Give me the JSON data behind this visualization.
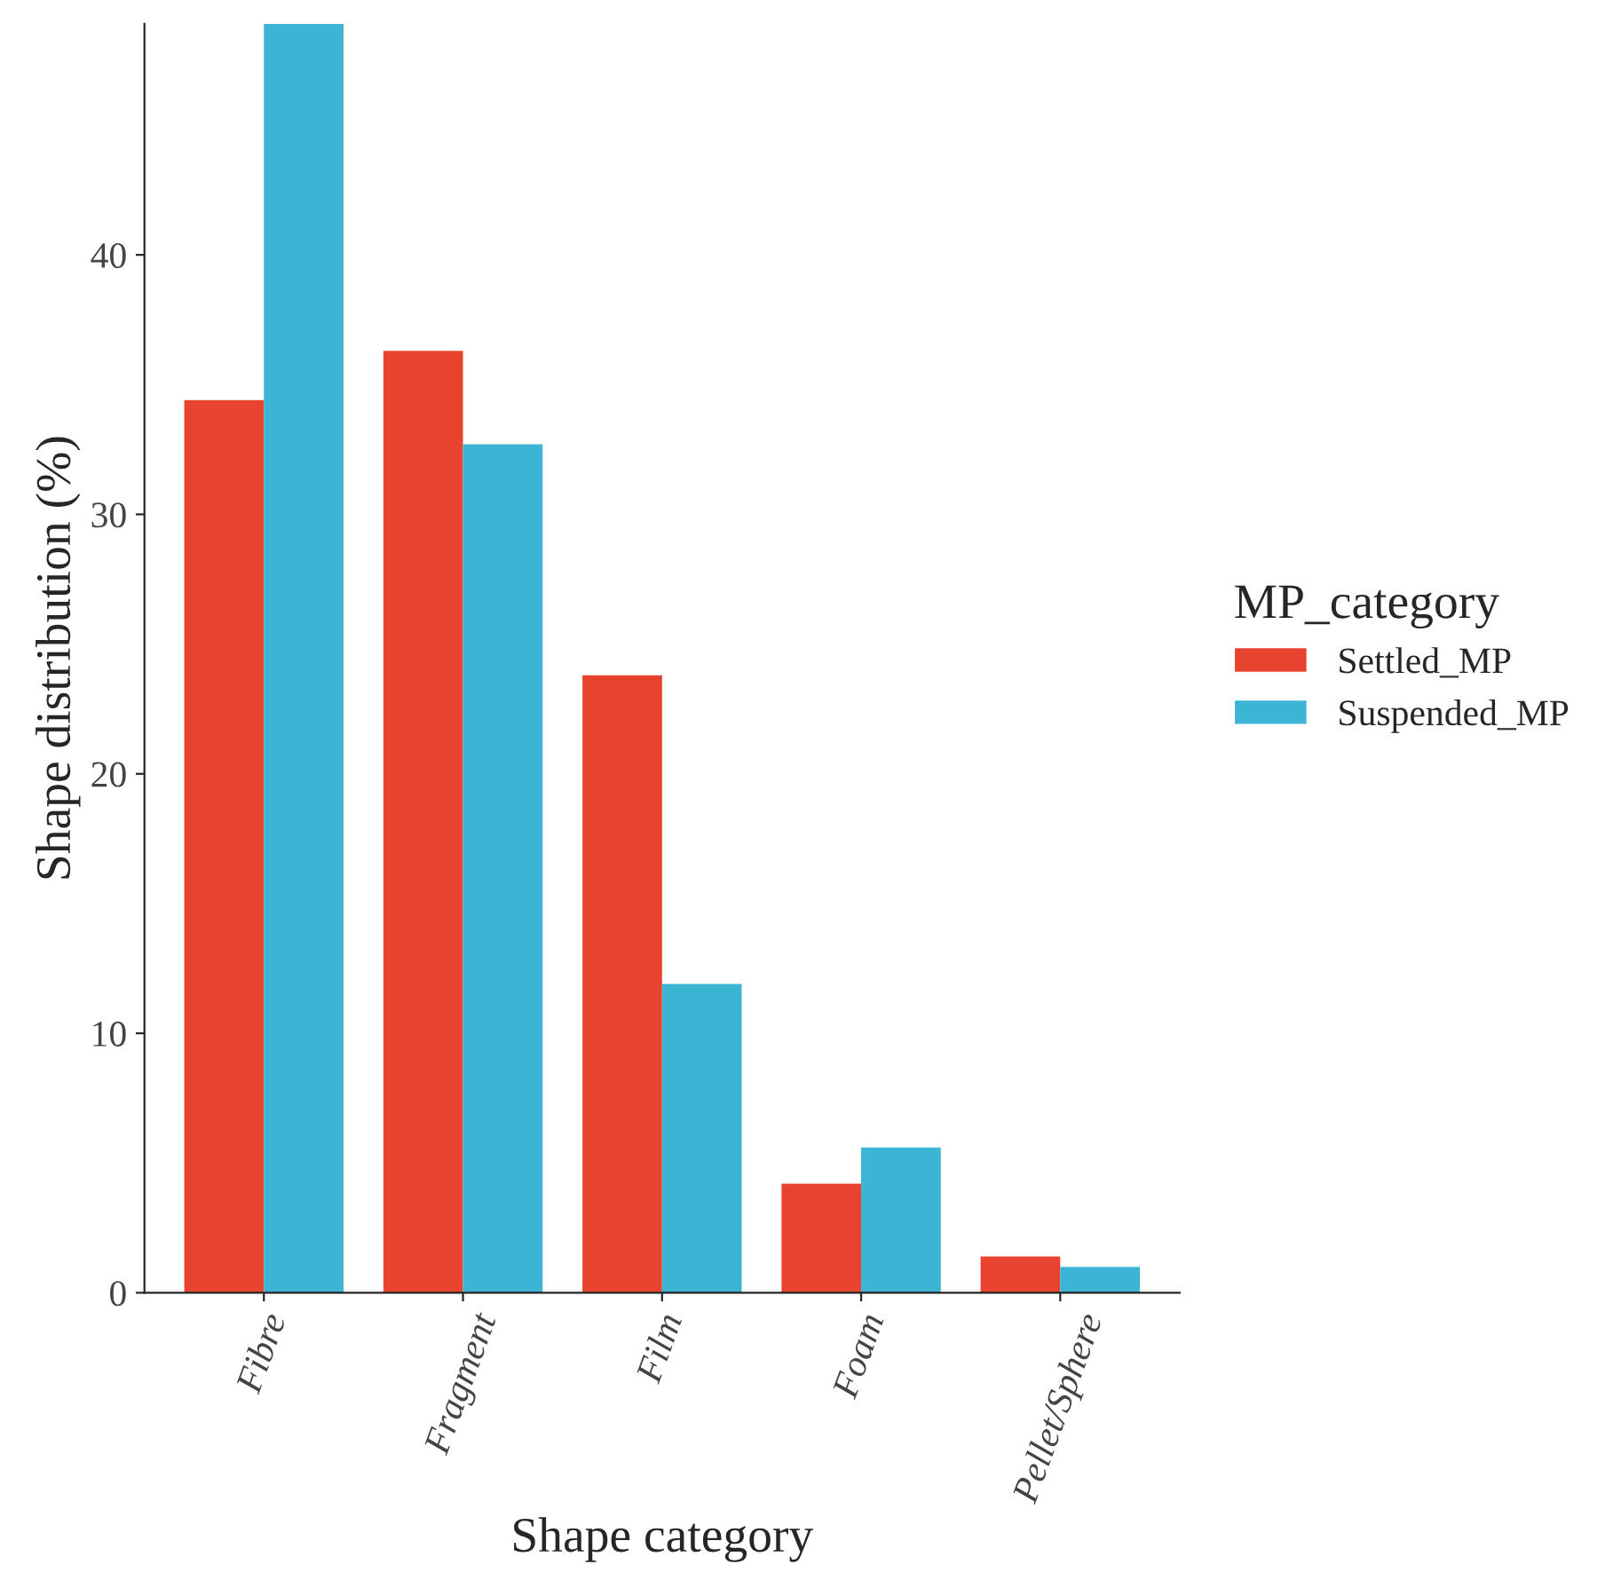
{
  "chart_data": {
    "type": "bar",
    "xlabel": "Shape category",
    "ylabel": "Shape distribution (%)",
    "legend_title": "MP_category",
    "categories": [
      "Fibre",
      "Fragment",
      "Film",
      "Foam",
      "Pellet/Sphere"
    ],
    "series": [
      {
        "name": "Settled_MP",
        "color": "#e8432f",
        "values": [
          34.4,
          36.3,
          23.8,
          4.2,
          1.4
        ]
      },
      {
        "name": "Suspended_MP",
        "color": "#3cb4d4",
        "values": [
          48.9,
          32.7,
          11.9,
          5.6,
          1.0
        ]
      }
    ],
    "ylim": [
      0,
      48.9
    ],
    "yticks": [
      0,
      10,
      20,
      30,
      40
    ],
    "grid": false,
    "legend": "right"
  }
}
